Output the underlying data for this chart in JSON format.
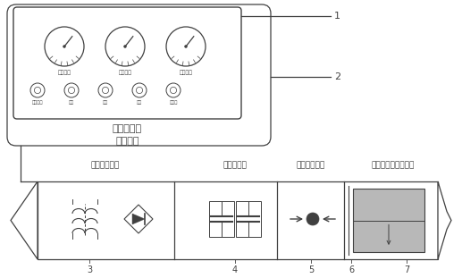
{
  "bg_color": "#ffffff",
  "line_color": "#404040",
  "box1_label": "电源控制柜",
  "box2_label": "下井电缆",
  "gauge_labels": [
    "初裂电压",
    "充电高压",
    "控裂电流"
  ],
  "indicator_labels": [
    "功率电器",
    "启动",
    "工作",
    "保护",
    "充电器"
  ],
  "label1": "1",
  "label2": "2",
  "label3": "3",
  "label4": "4",
  "label5": "5",
  "label6": "6",
  "label7": "7",
  "top_label3": "高压直流电源",
  "top_label4": "脉冲电容器",
  "top_label5": "隔离切换开关",
  "top_label67": "爆炸丝与含能混合物",
  "gray_fill": "#b8b8b8"
}
